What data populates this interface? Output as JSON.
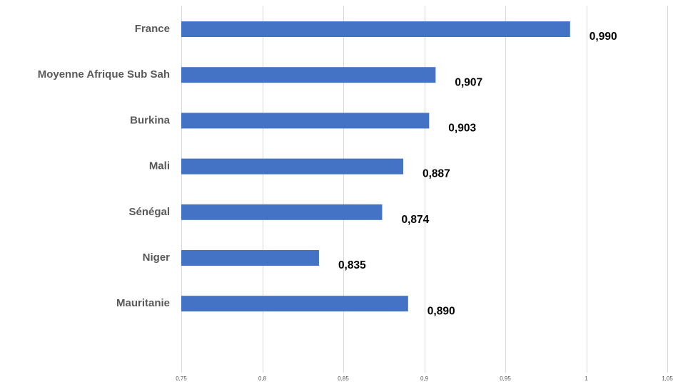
{
  "chart_data": {
    "type": "bar",
    "orientation": "horizontal",
    "categories": [
      "France",
      "Moyenne Afrique Sub Sah",
      "Burkina",
      "Mali",
      "Sénégal",
      "Niger",
      "Mauritanie"
    ],
    "values": [
      0.99,
      0.907,
      0.903,
      0.887,
      0.874,
      0.835,
      0.89
    ],
    "value_labels": [
      "0,990",
      "0,907",
      "0,903",
      "0,887",
      "0,874",
      "0,835",
      "0,890"
    ],
    "xlim": [
      0.75,
      1.05
    ],
    "x_ticks": [
      0.75,
      0.8,
      0.85,
      0.9,
      0.95,
      1,
      1.05
    ],
    "x_tick_labels": [
      "0,75",
      "0,8",
      "0,85",
      "0,9",
      "0,95",
      "1",
      "1,05"
    ],
    "title": "",
    "xlabel": "",
    "ylabel": "",
    "grid": "vertical",
    "legend": "none",
    "bar_color": "#4472C4"
  }
}
